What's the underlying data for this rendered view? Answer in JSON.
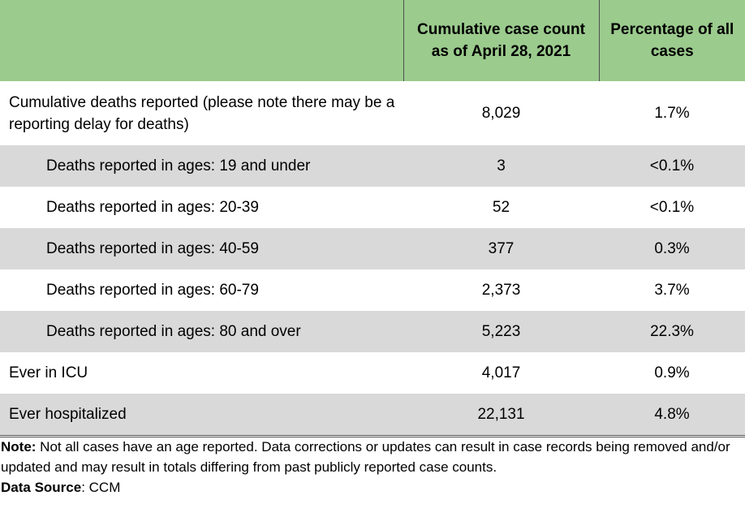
{
  "table": {
    "headers": {
      "col1": "",
      "col2": "Cumulative case count as of April 28, 2021",
      "col3": "Percentage of all cases"
    },
    "rows": [
      {
        "label": "Cumulative deaths reported (please note there may be a reporting delay for deaths)",
        "count": "8,029",
        "percent": "1.7%"
      },
      {
        "label": "Deaths reported in ages: 19 and under",
        "count": "3",
        "percent": "<0.1%"
      },
      {
        "label": "Deaths reported in ages: 20-39",
        "count": "52",
        "percent": "<0.1%"
      },
      {
        "label": "Deaths reported in ages: 40-59",
        "count": "377",
        "percent": "0.3%"
      },
      {
        "label": "Deaths reported in ages: 60-79",
        "count": "2,373",
        "percent": "3.7%"
      },
      {
        "label": "Deaths reported in ages: 80 and over",
        "count": "5,223",
        "percent": "22.3%"
      },
      {
        "label": "Ever in ICU",
        "count": "4,017",
        "percent": "0.9%"
      },
      {
        "label": "Ever hospitalized",
        "count": "22,131",
        "percent": "4.8%"
      }
    ]
  },
  "notes": {
    "note_label": "Note:",
    "note_text": " Not all cases have an age reported. Data corrections or updates can result in case records being removed and/or updated and may result in totals differing from past publicly reported case counts.",
    "source_label": "Data Source",
    "source_text": ": CCM"
  },
  "colors": {
    "header_green": "#9bcb8d",
    "row_shade": "#d9d9d9"
  }
}
